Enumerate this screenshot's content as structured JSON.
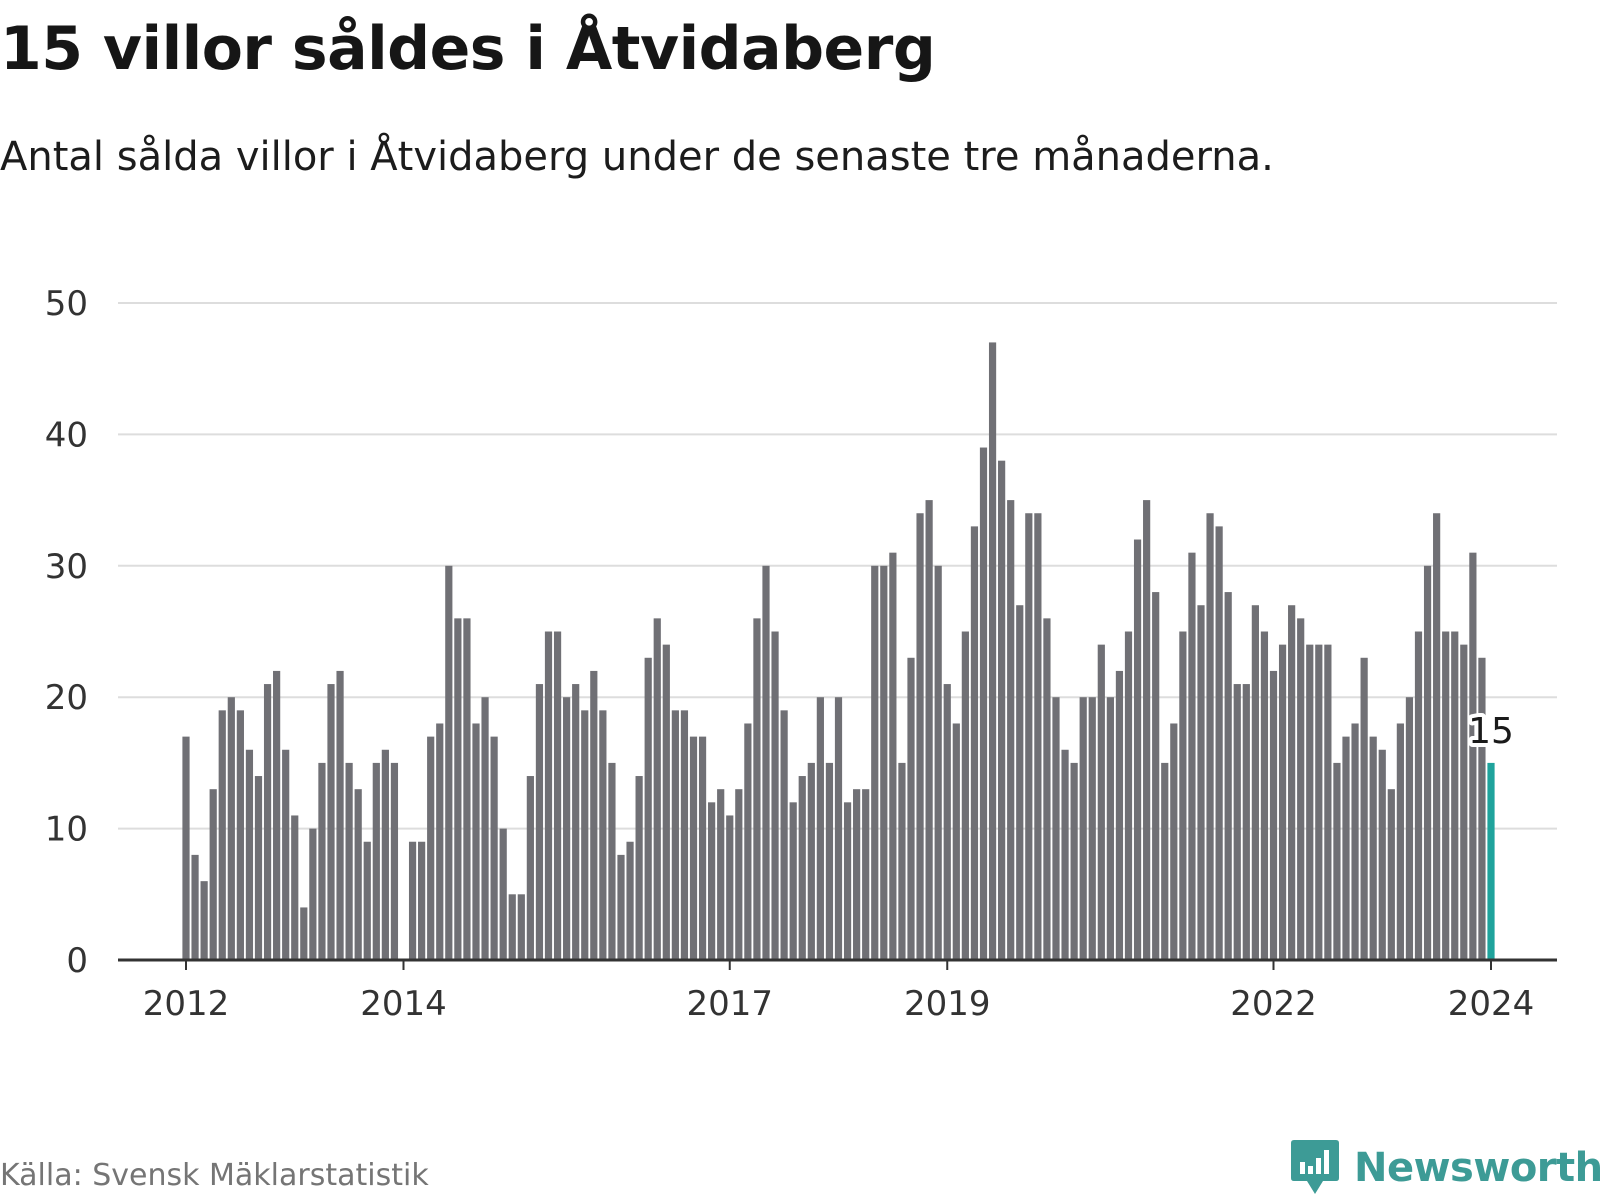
{
  "header": {
    "title": "15 villor såldes i Åtvidaberg",
    "subtitle": "Antal sålda villor i Åtvidaberg under de senaste tre månaderna."
  },
  "footer": {
    "source": "Källa: Svensk Mäklarstatistik",
    "brand": "Newsworthy",
    "brand_icon": "newsworthy-logo-icon"
  },
  "colors": {
    "bar": "#707075",
    "highlight": "#1fa39c",
    "grid": "#dddddd",
    "axis": "#333333",
    "brand": "#3d9b96"
  },
  "chart_data": {
    "type": "bar",
    "title": "15 villor såldes i Åtvidaberg",
    "xlabel": "",
    "ylabel": "",
    "ylim": [
      0,
      50
    ],
    "yticks": [
      0,
      10,
      20,
      30,
      40,
      50
    ],
    "grid": true,
    "start": "2012-01",
    "xtick_labels": [
      {
        "label": "2012",
        "index": 0
      },
      {
        "label": "2014",
        "index": 24
      },
      {
        "label": "2017",
        "index": 60
      },
      {
        "label": "2019",
        "index": 84
      },
      {
        "label": "2022",
        "index": 120
      },
      {
        "label": "2024",
        "index": 144
      }
    ],
    "values": [
      17,
      8,
      6,
      13,
      19,
      20,
      19,
      16,
      14,
      21,
      22,
      16,
      11,
      4,
      10,
      15,
      21,
      22,
      15,
      13,
      9,
      15,
      16,
      15,
      0,
      9,
      9,
      17,
      18,
      30,
      26,
      26,
      18,
      20,
      17,
      10,
      5,
      5,
      14,
      21,
      25,
      25,
      20,
      21,
      19,
      22,
      19,
      15,
      8,
      9,
      14,
      23,
      26,
      24,
      19,
      19,
      17,
      17,
      12,
      13,
      11,
      13,
      18,
      26,
      30,
      25,
      19,
      12,
      14,
      15,
      20,
      15,
      20,
      12,
      13,
      13,
      30,
      30,
      31,
      15,
      23,
      34,
      35,
      30,
      21,
      18,
      25,
      33,
      39,
      47,
      38,
      35,
      27,
      34,
      34,
      26,
      20,
      16,
      15,
      20,
      20,
      24,
      20,
      22,
      25,
      32,
      35,
      28,
      15,
      18,
      25,
      31,
      27,
      34,
      33,
      28,
      21,
      21,
      27,
      25,
      22,
      24,
      27,
      26,
      24,
      24,
      24,
      15,
      17,
      18,
      23,
      17,
      16,
      13,
      18,
      20,
      25,
      30,
      34,
      25,
      25,
      24,
      31,
      23,
      15
    ],
    "highlight": {
      "index": 144,
      "value": 15,
      "label": "15"
    }
  }
}
